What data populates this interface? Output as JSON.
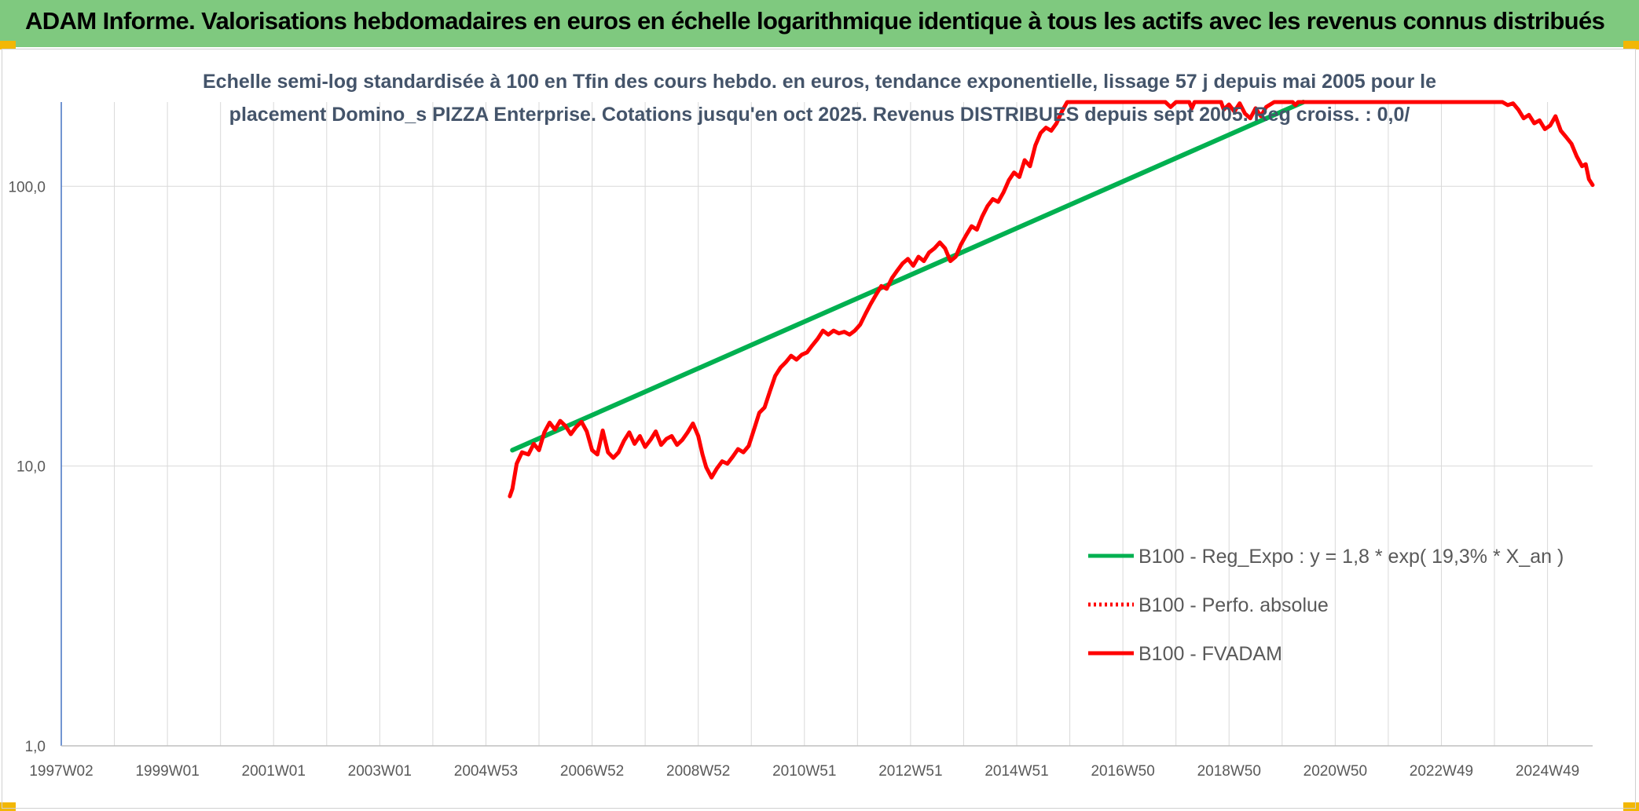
{
  "header": {
    "title": "ADAM Informe. Valorisations hebdomadaires en euros en échelle logarithmique identique à tous les actifs avec les revenus connus distribués"
  },
  "chart_data": {
    "type": "line",
    "title_lines": [
      "Echelle semi-log standardisée à 100 en Tfin des cours hebdo. en euros, tendance exponentielle, lissage 57 j depuis mai 2005 pour le",
      "placement Domino_s PIZZA Enterprise. Cotations jusqu'en oct 2025. Revenus DISTRIBUES depuis sept 2005. Reg croiss. : 0,0/"
    ],
    "y_scale": "log",
    "ylim": [
      1,
      200
    ],
    "y_ticks": [
      {
        "value": 1,
        "label": "1,0"
      },
      {
        "value": 10,
        "label": "10,0"
      },
      {
        "value": 100,
        "label": "100,0"
      }
    ],
    "xlim": [
      1997.0,
      2025.85
    ],
    "x_ticks": [
      {
        "value": 1997.0,
        "label": "1997W02"
      },
      {
        "value": 1999.0,
        "label": "1999W01"
      },
      {
        "value": 2001.0,
        "label": "2001W01"
      },
      {
        "value": 2003.0,
        "label": "2003W01"
      },
      {
        "value": 2005.0,
        "label": "2004W53"
      },
      {
        "value": 2007.0,
        "label": "2006W52"
      },
      {
        "value": 2009.0,
        "label": "2008W52"
      },
      {
        "value": 2011.0,
        "label": "2010W51"
      },
      {
        "value": 2013.0,
        "label": "2012W51"
      },
      {
        "value": 2015.0,
        "label": "2014W51"
      },
      {
        "value": 2017.0,
        "label": "2016W50"
      },
      {
        "value": 2019.0,
        "label": "2018W50"
      },
      {
        "value": 2021.0,
        "label": "2020W50"
      },
      {
        "value": 2023.0,
        "label": "2022W49"
      },
      {
        "value": 2025.0,
        "label": "2024W49"
      }
    ],
    "grid": true,
    "legend_position": "right",
    "series": [
      {
        "name": "B100 - Reg_Expo : y = 1,8 * exp( 19,3% *  X_an )",
        "color": "#00b050",
        "style": "solid",
        "points": [
          [
            2005.5,
            11.4
          ],
          [
            2020.4,
            200
          ]
        ]
      },
      {
        "name": "B100 - Perfo. absolue",
        "color": "#ff0000",
        "style": "dotted",
        "points": []
      },
      {
        "name": "B100 - FVADAM",
        "color": "#ff0000",
        "style": "solid",
        "points": [
          [
            2005.45,
            7.8
          ],
          [
            2005.5,
            8.3
          ],
          [
            2005.58,
            10.2
          ],
          [
            2005.68,
            11.2
          ],
          [
            2005.8,
            11.0
          ],
          [
            2005.9,
            12.0
          ],
          [
            2006.0,
            11.4
          ],
          [
            2006.1,
            13.2
          ],
          [
            2006.2,
            14.3
          ],
          [
            2006.3,
            13.5
          ],
          [
            2006.4,
            14.5
          ],
          [
            2006.5,
            13.9
          ],
          [
            2006.6,
            13.0
          ],
          [
            2006.7,
            13.8
          ],
          [
            2006.8,
            14.4
          ],
          [
            2006.9,
            13.3
          ],
          [
            2007.0,
            11.4
          ],
          [
            2007.1,
            11.0
          ],
          [
            2007.2,
            13.4
          ],
          [
            2007.3,
            11.2
          ],
          [
            2007.4,
            10.7
          ],
          [
            2007.5,
            11.2
          ],
          [
            2007.6,
            12.3
          ],
          [
            2007.7,
            13.2
          ],
          [
            2007.8,
            12.0
          ],
          [
            2007.9,
            12.8
          ],
          [
            2008.0,
            11.7
          ],
          [
            2008.1,
            12.4
          ],
          [
            2008.2,
            13.3
          ],
          [
            2008.3,
            11.9
          ],
          [
            2008.4,
            12.5
          ],
          [
            2008.5,
            12.8
          ],
          [
            2008.6,
            11.9
          ],
          [
            2008.7,
            12.4
          ],
          [
            2008.8,
            13.2
          ],
          [
            2008.9,
            14.2
          ],
          [
            2009.0,
            12.8
          ],
          [
            2009.08,
            11.0
          ],
          [
            2009.15,
            9.9
          ],
          [
            2009.25,
            9.1
          ],
          [
            2009.35,
            9.8
          ],
          [
            2009.45,
            10.4
          ],
          [
            2009.55,
            10.2
          ],
          [
            2009.65,
            10.8
          ],
          [
            2009.75,
            11.5
          ],
          [
            2009.85,
            11.2
          ],
          [
            2009.95,
            11.8
          ],
          [
            2010.05,
            13.5
          ],
          [
            2010.15,
            15.5
          ],
          [
            2010.25,
            16.2
          ],
          [
            2010.35,
            18.5
          ],
          [
            2010.45,
            21.0
          ],
          [
            2010.55,
            22.5
          ],
          [
            2010.65,
            23.5
          ],
          [
            2010.75,
            24.8
          ],
          [
            2010.85,
            24.0
          ],
          [
            2010.95,
            25.0
          ],
          [
            2011.05,
            25.5
          ],
          [
            2011.15,
            27.0
          ],
          [
            2011.25,
            28.5
          ],
          [
            2011.35,
            30.5
          ],
          [
            2011.45,
            29.5
          ],
          [
            2011.55,
            30.5
          ],
          [
            2011.65,
            29.8
          ],
          [
            2011.75,
            30.2
          ],
          [
            2011.85,
            29.5
          ],
          [
            2011.95,
            30.5
          ],
          [
            2012.05,
            32.0
          ],
          [
            2012.15,
            35.0
          ],
          [
            2012.25,
            38.0
          ],
          [
            2012.35,
            41.0
          ],
          [
            2012.45,
            44.0
          ],
          [
            2012.55,
            43.0
          ],
          [
            2012.65,
            47.0
          ],
          [
            2012.75,
            50.0
          ],
          [
            2012.85,
            53.0
          ],
          [
            2012.95,
            55.0
          ],
          [
            2013.05,
            52.0
          ],
          [
            2013.15,
            56.0
          ],
          [
            2013.25,
            54.0
          ],
          [
            2013.35,
            58.0
          ],
          [
            2013.45,
            60.0
          ],
          [
            2013.55,
            63.0
          ],
          [
            2013.65,
            60.0
          ],
          [
            2013.75,
            54.0
          ],
          [
            2013.85,
            56.0
          ],
          [
            2013.95,
            62.0
          ],
          [
            2014.05,
            67.0
          ],
          [
            2014.15,
            72.0
          ],
          [
            2014.25,
            70.0
          ],
          [
            2014.35,
            78.0
          ],
          [
            2014.45,
            85.0
          ],
          [
            2014.55,
            90.0
          ],
          [
            2014.65,
            88.0
          ],
          [
            2014.75,
            95.0
          ],
          [
            2014.85,
            105.0
          ],
          [
            2014.95,
            112.0
          ],
          [
            2015.05,
            108.0
          ],
          [
            2015.15,
            124.0
          ],
          [
            2015.25,
            118.0
          ],
          [
            2015.35,
            140.0
          ],
          [
            2015.45,
            155.0
          ],
          [
            2015.55,
            162.0
          ],
          [
            2015.65,
            158.0
          ],
          [
            2015.75,
            168.0
          ],
          [
            2015.85,
            185.0
          ],
          [
            2015.95,
            200.0
          ],
          [
            2017.8,
            200.0
          ],
          [
            2017.9,
            192.0
          ],
          [
            2018.0,
            200.0
          ],
          [
            2018.25,
            200.0
          ],
          [
            2018.3,
            190.0
          ],
          [
            2018.35,
            200.0
          ],
          [
            2018.85,
            200.0
          ],
          [
            2018.9,
            188.0
          ],
          [
            2019.0,
            196.0
          ],
          [
            2019.1,
            185.0
          ],
          [
            2019.2,
            198.0
          ],
          [
            2019.3,
            182.0
          ],
          [
            2019.4,
            175.0
          ],
          [
            2019.5,
            190.0
          ],
          [
            2019.6,
            178.0
          ],
          [
            2019.7,
            192.0
          ],
          [
            2019.85,
            200.0
          ],
          [
            2020.2,
            200.0
          ],
          [
            2020.25,
            195.0
          ],
          [
            2020.3,
            200.0
          ],
          [
            2024.15,
            200.0
          ],
          [
            2024.25,
            195.0
          ],
          [
            2024.35,
            198.0
          ],
          [
            2024.45,
            188.0
          ],
          [
            2024.55,
            175.0
          ],
          [
            2024.65,
            180.0
          ],
          [
            2024.75,
            168.0
          ],
          [
            2024.85,
            172.0
          ],
          [
            2024.95,
            160.0
          ],
          [
            2025.05,
            165.0
          ],
          [
            2025.15,
            178.0
          ],
          [
            2025.25,
            158.0
          ],
          [
            2025.35,
            150.0
          ],
          [
            2025.45,
            142.0
          ],
          [
            2025.55,
            128.0
          ],
          [
            2025.65,
            118.0
          ],
          [
            2025.72,
            120.0
          ],
          [
            2025.78,
            106.0
          ],
          [
            2025.85,
            101.0
          ]
        ]
      }
    ]
  }
}
